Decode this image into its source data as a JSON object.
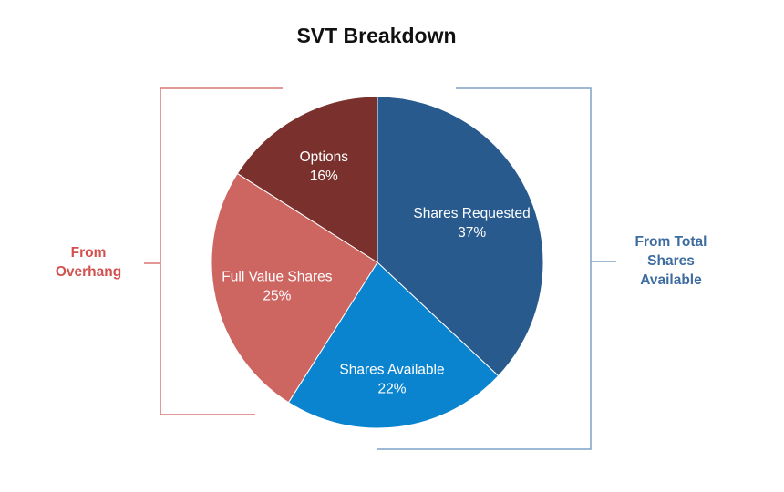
{
  "colors": {
    "shares_requested": "#285A8E",
    "shares_available": "#0B84CF",
    "full_value_shares": "#CD6561",
    "options": "#7A312D",
    "overhang_group": "#D2514F",
    "total_shares_group": "#3D6C9F",
    "bracket_left": "#D87775",
    "bracket_right": "#7FA2C9"
  },
  "chart_data": {
    "type": "pie",
    "title": "SVT Breakdown",
    "slices": [
      {
        "label": "Shares Requested",
        "value": 37,
        "value_label": "37%"
      },
      {
        "label": "Shares Available",
        "value": 22,
        "value_label": "22%"
      },
      {
        "label": "Full Value Shares",
        "value": 25,
        "value_label": "25%"
      },
      {
        "label": "Options",
        "value": 16,
        "value_label": "16%"
      }
    ],
    "groups": [
      {
        "name_lines": [
          "From",
          "Overhang"
        ],
        "slices": [
          "Full Value Shares",
          "Options"
        ],
        "side": "left"
      },
      {
        "name_lines": [
          "From Total",
          "Shares",
          "Available"
        ],
        "slices": [
          "Shares Requested",
          "Shares Available"
        ],
        "side": "right"
      }
    ],
    "start": "12 o'clock",
    "direction": "clockwise",
    "legend": "none"
  }
}
